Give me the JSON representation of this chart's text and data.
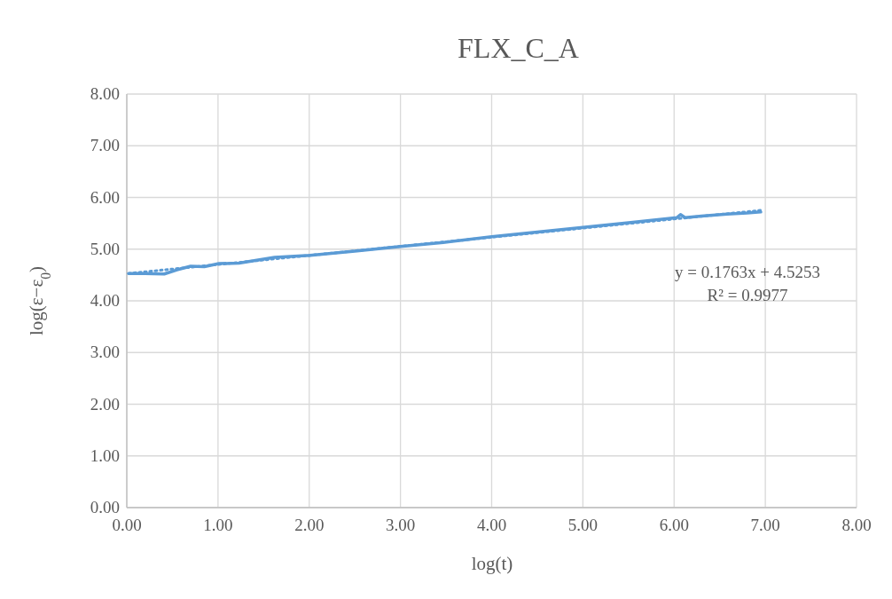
{
  "chart_data": {
    "type": "line",
    "title": "FLX_C_A",
    "xlabel": "log(t)",
    "ylabel": "log(ε−ε$_{0}$)",
    "xlim": [
      0,
      8
    ],
    "xticks": [
      {
        "value": 0,
        "label": "0.00"
      },
      {
        "value": 1,
        "label": "1.00"
      },
      {
        "value": 2,
        "label": "2.00"
      },
      {
        "value": 3,
        "label": "3.00"
      },
      {
        "value": 4,
        "label": "4.00"
      },
      {
        "value": 5,
        "label": "5.00"
      },
      {
        "value": 6,
        "label": "6.00"
      },
      {
        "value": 7,
        "label": "7.00"
      },
      {
        "value": 8,
        "label": "8.00"
      }
    ],
    "ylim": [
      0,
      8
    ],
    "yticks": [
      {
        "value": 0,
        "label": "0.00"
      },
      {
        "value": 1,
        "label": "1.00"
      },
      {
        "value": 2,
        "label": "2.00"
      },
      {
        "value": 3,
        "label": "3.00"
      },
      {
        "value": 4,
        "label": "4.00"
      },
      {
        "value": 5,
        "label": "5.00"
      },
      {
        "value": 6,
        "label": "6.00"
      },
      {
        "value": 7,
        "label": "7.00"
      },
      {
        "value": 8,
        "label": "8.00"
      }
    ],
    "grid": true,
    "series": [
      {
        "color": "#5b9bd5",
        "line_style": "solid",
        "x": [
          0.02,
          0.2,
          0.41,
          0.55,
          0.7,
          0.85,
          1.01,
          1.23,
          1.62,
          2.01,
          2.5,
          3.0,
          3.47,
          4.0,
          4.5,
          5.0,
          5.5,
          6.03,
          6.07,
          6.12,
          6.3,
          6.58,
          6.8,
          6.95
        ],
        "values": [
          4.53,
          4.53,
          4.52,
          4.6,
          4.67,
          4.66,
          4.72,
          4.73,
          4.84,
          4.88,
          4.96,
          5.05,
          5.13,
          5.24,
          5.33,
          5.42,
          5.51,
          5.61,
          5.67,
          5.61,
          5.64,
          5.68,
          5.7,
          5.72
        ]
      },
      {
        "color": "#5b9bd5",
        "line_style": "dotted",
        "x": [
          0.02,
          6.95
        ],
        "values": [
          4.53,
          5.75
        ]
      }
    ],
    "annotations": [
      "y = 0.1763x + 4.5253",
      "R² = 0.9977"
    ]
  }
}
